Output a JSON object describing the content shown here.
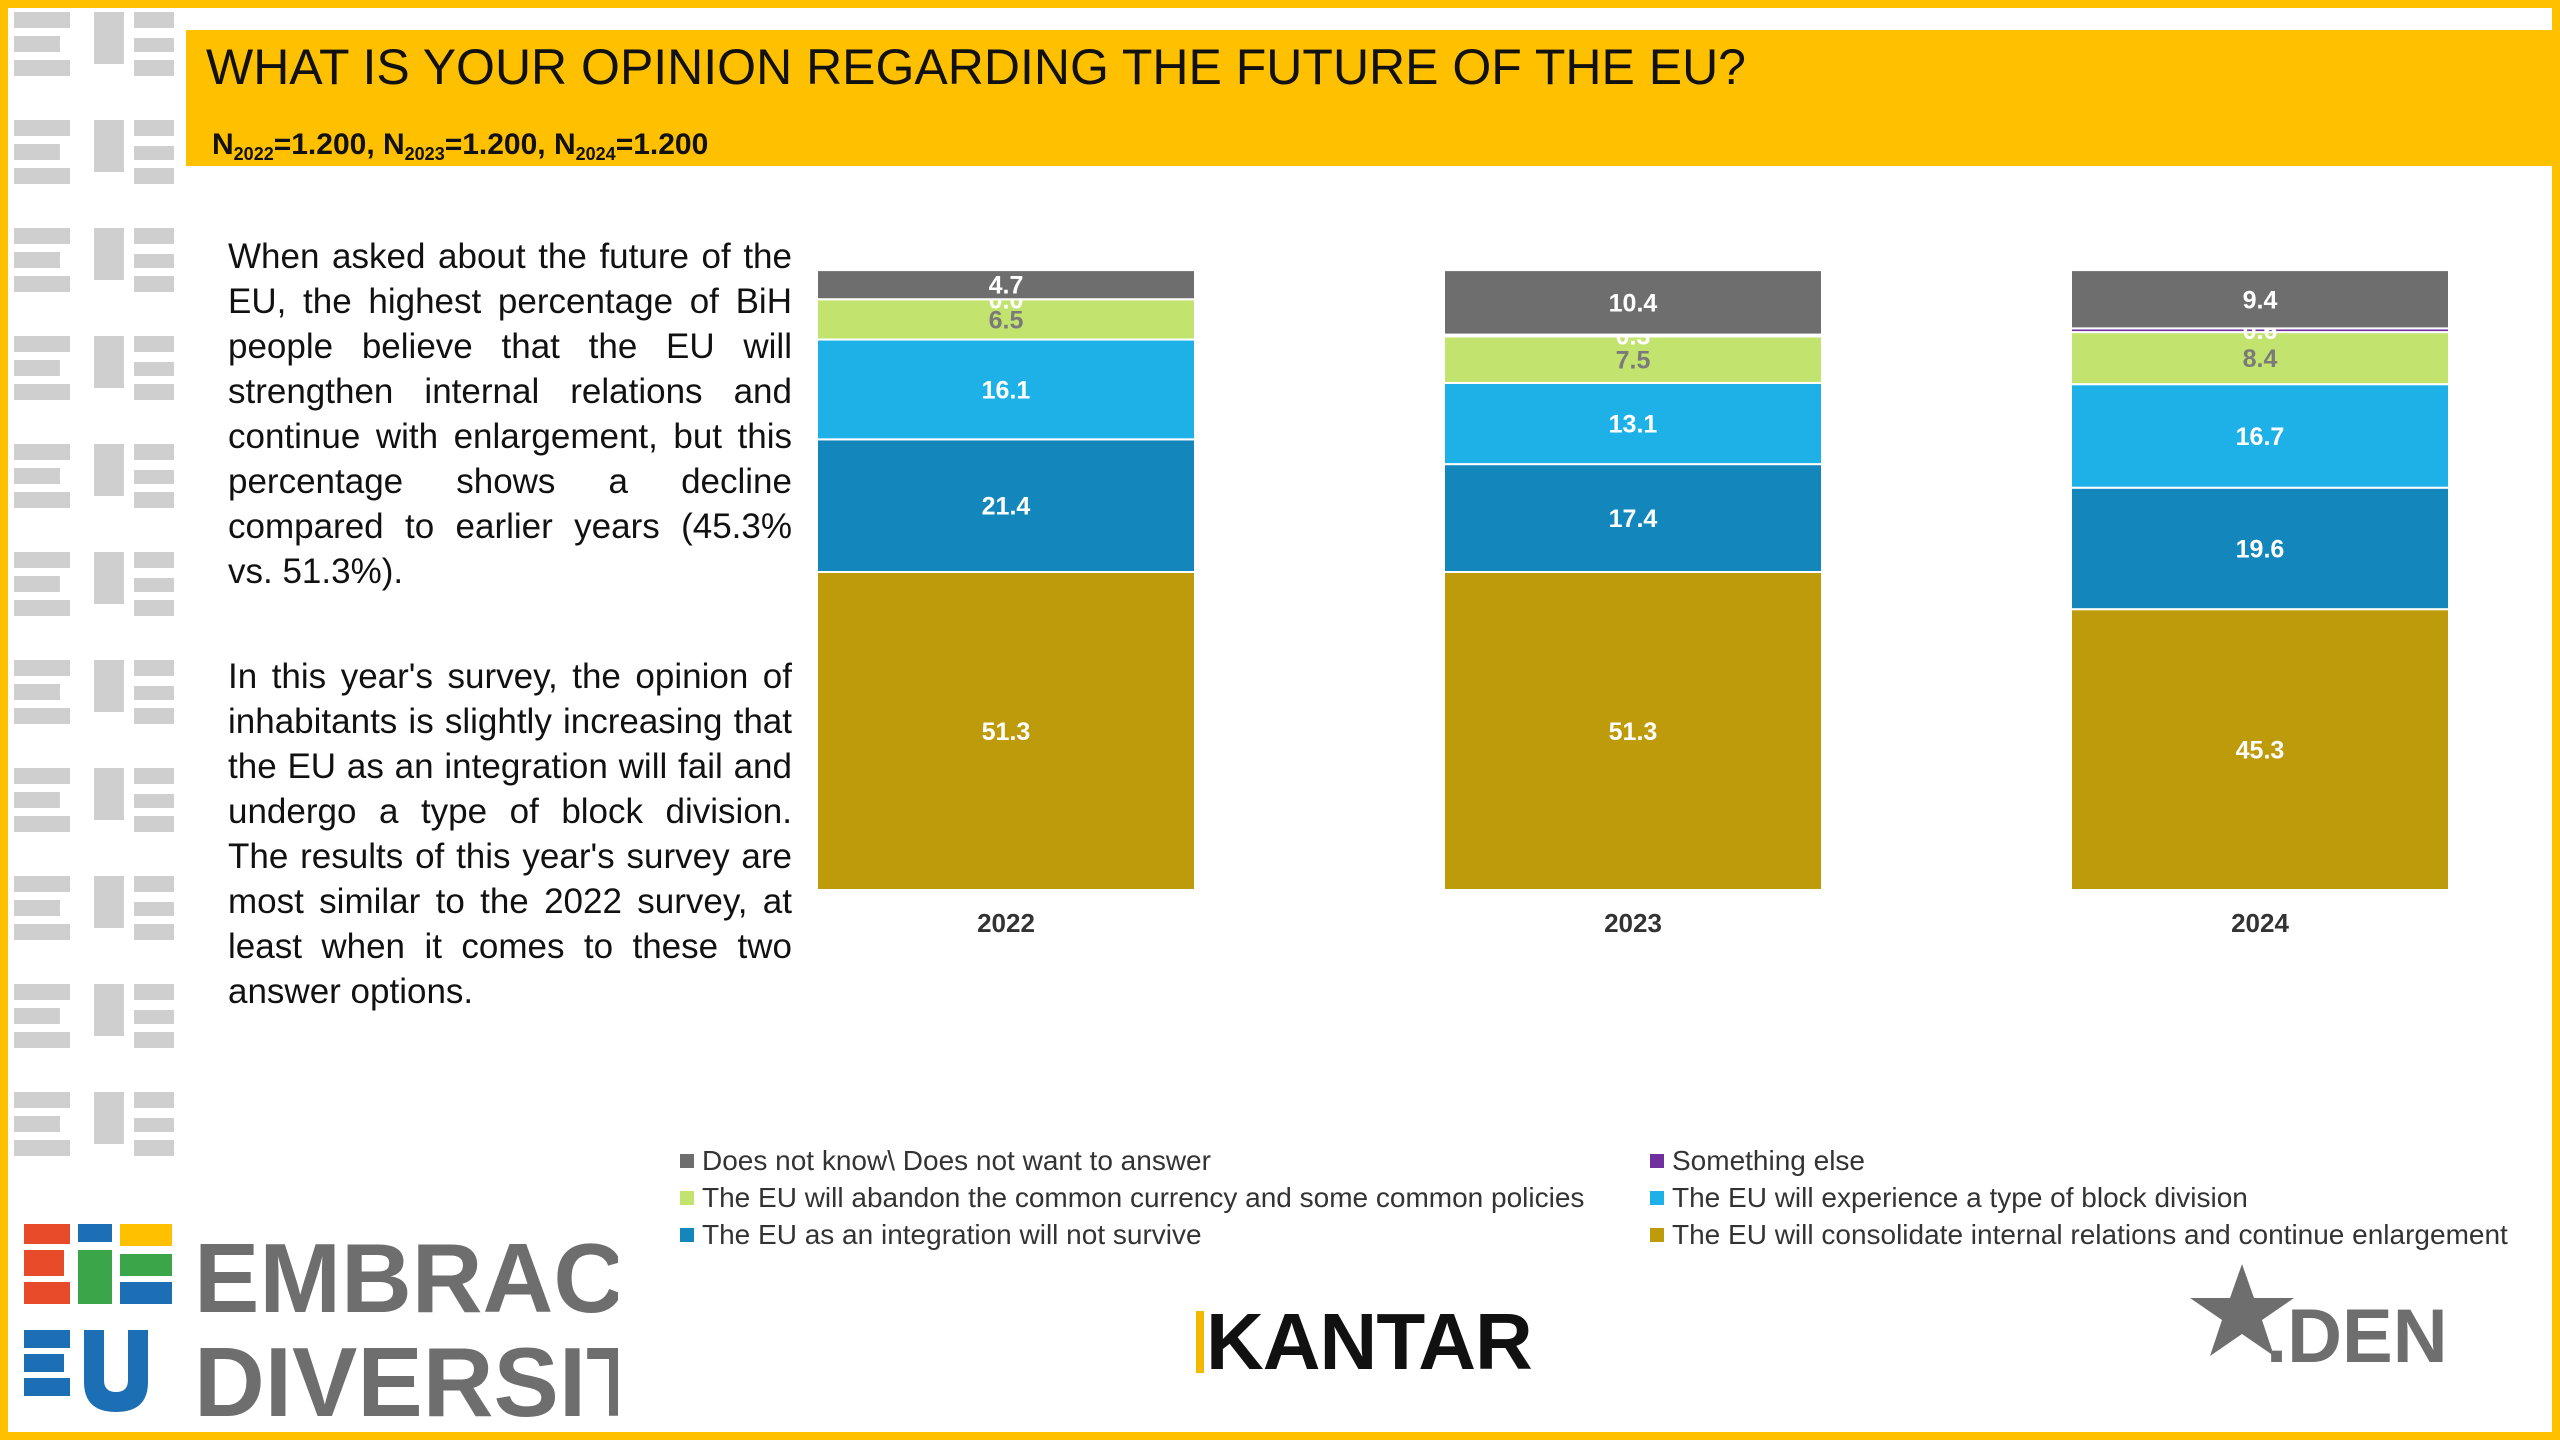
{
  "header": {
    "title": "WHAT IS YOUR OPINION REGARDING THE FUTURE OF THE EU?",
    "sample": [
      {
        "label": "N",
        "year": "2022",
        "value": "=1.200"
      },
      {
        "label": "N",
        "year": "2023",
        "value": "=1.200"
      },
      {
        "label": "N",
        "year": "2024",
        "value": "=1.200"
      }
    ]
  },
  "text": {
    "paragraph1": "When asked about the future of the EU, the highest percentage of BiH people believe that the EU will strengthen internal relations and continue with enlargement, but this percentage shows a decline compared to earlier years (45.3% vs. 51.3%).",
    "paragraph2": "In this year's survey, the opinion of inhabitants is slightly increasing that the EU as an integration will fail and undergo a type of block division. The results of this year's survey are most similar to the 2022 survey, at least when it comes to these two answer options."
  },
  "chart_data": {
    "type": "bar",
    "stacked": true,
    "categories": [
      "2022",
      "2023",
      "2024"
    ],
    "series": [
      {
        "name": "The EU will consolidate internal relations and continue enlargement",
        "color": "#BD9B0A",
        "values": [
          51.3,
          51.3,
          45.3
        ]
      },
      {
        "name": "The EU as an integration will not survive",
        "color": "#1386BB",
        "values": [
          21.4,
          17.4,
          19.6
        ]
      },
      {
        "name": "The EU will experience a type of block division",
        "color": "#1EB1E7",
        "values": [
          16.1,
          13.1,
          16.7
        ]
      },
      {
        "name": "The EU will abandon the common currency and some common policies",
        "color": "#C2E36E",
        "values": [
          6.5,
          7.5,
          8.4
        ]
      },
      {
        "name": "Something else",
        "color": "#7030A0",
        "values": [
          0.0,
          0.3,
          0.6
        ]
      },
      {
        "name": "Does not know\\ Does not want to answer",
        "color": "#6E6E6E",
        "values": [
          4.7,
          10.4,
          9.4
        ]
      }
    ],
    "ylim": [
      0,
      100
    ],
    "legend_position": "bottom"
  },
  "legend": [
    {
      "label": "Does not know\\ Does not want to answer",
      "color": "#6E6E6E"
    },
    {
      "label": "Something else",
      "color": "#7030A0"
    },
    {
      "label": "The EU will abandon the common currency and some common policies",
      "color": "#C2E36E"
    },
    {
      "label": "The EU will experience a type of block division",
      "color": "#1EB1E7"
    },
    {
      "label": "The EU as an integration will not survive",
      "color": "#1386BB"
    },
    {
      "label": "The EU will consolidate internal relations and continue enlargement",
      "color": "#BD9B0A"
    }
  ],
  "logos": {
    "embrace_line1": "EMBRACE",
    "embrace_line2": "DIVERSITY",
    "kantar": "KANTAR",
    "den": ".DEN"
  },
  "colors": {
    "accent": "#FFC000"
  }
}
